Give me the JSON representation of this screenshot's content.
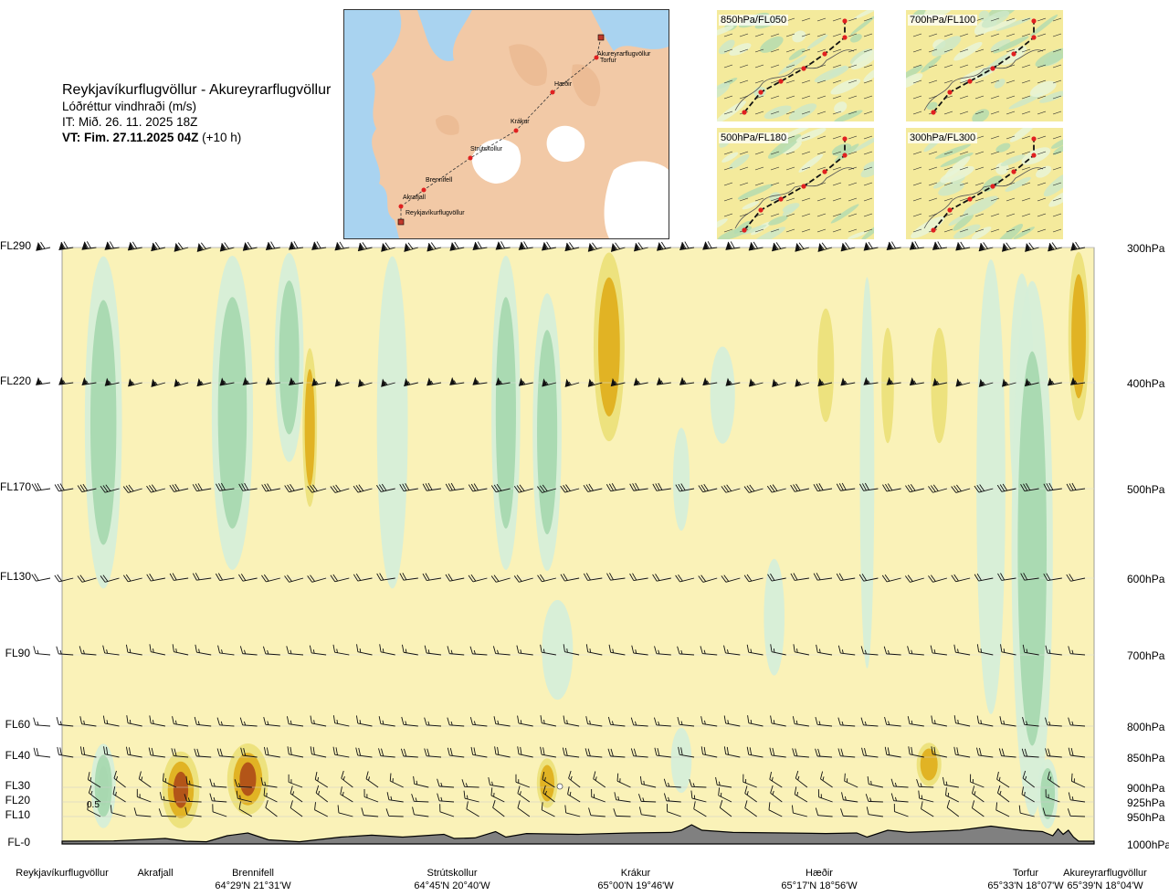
{
  "header": {
    "route": "Reykjavíkurflugvöllur - Akureyrarflugvöllur",
    "variable": "Lóðréttur vindhraði (m/s)",
    "issue_time": "IT: Mið. 26. 11. 2025 18Z",
    "valid_time_bold": "VT: Fim. 27.11.2025 04Z",
    "valid_time_lead": "(+10 h)"
  },
  "route_map": {
    "waypoints": [
      "Akureyrarflugvöllur",
      "Torfur",
      "Hæðir",
      "Krákur",
      "Strútskollur",
      "Brennifell",
      "Akrafjall",
      "Reykjavíkurflugvöllur"
    ]
  },
  "mini_maps": [
    {
      "label": "850hPa/FL050"
    },
    {
      "label": "700hPa/FL100"
    },
    {
      "label": "500hPa/FL180"
    },
    {
      "label": "300hPa/FL300"
    }
  ],
  "colors": {
    "land": "#f2c9a6",
    "water": "#a9d3f0",
    "glacier": "#ffffff",
    "terrain": "#808080",
    "neutral": "#faf2b8",
    "down_strong": "#a8d8b0",
    "down_weak": "#d6eed8",
    "up_weak": "#ece07a",
    "up_strong": "#e0b020",
    "up_max": "#b05018"
  },
  "chart_data": {
    "type": "heatmap",
    "title": "Lóðréttur vindhraði (m/s)",
    "y_levels": [
      {
        "fl": "FL290",
        "hpa": "300hPa"
      },
      {
        "fl": "FL220",
        "hpa": "400hPa"
      },
      {
        "fl": "FL170",
        "hpa": "500hPa"
      },
      {
        "fl": "FL130",
        "hpa": "600hPa"
      },
      {
        "fl": "FL90",
        "hpa": "700hPa"
      },
      {
        "fl": "FL60",
        "hpa": "800hPa"
      },
      {
        "fl": "FL40",
        "hpa": "850hPa"
      },
      {
        "fl": "FL30",
        "hpa": "900hPa"
      },
      {
        "fl": "FL20",
        "hpa": "925hPa"
      },
      {
        "fl": "FL10",
        "hpa": "950hPa"
      },
      {
        "fl": "FL-0",
        "hpa": "1000hPa"
      }
    ],
    "locations": [
      {
        "name": "Reykjavíkurflugvöllur",
        "coord": ""
      },
      {
        "name": "Akrafjall",
        "coord": ""
      },
      {
        "name": "Brennifell",
        "coord": "64°29'N 21°31'W"
      },
      {
        "name": "Strútskollur",
        "coord": "64°45'N 20°40'W"
      },
      {
        "name": "Krákur",
        "coord": "65°00'N 19°46'W"
      },
      {
        "name": "Hæðir",
        "coord": "65°17'N 18°56'W"
      },
      {
        "name": "Torfur",
        "coord": "65°33'N 18°07'W"
      },
      {
        "name": "Akureyrarflugvöllur",
        "coord": "65°39'N 18°04'W"
      }
    ],
    "annotation": "0.5",
    "columns": [
      {
        "x": 0.04,
        "half_width": 0.018,
        "fl_top": 290,
        "fl_bottom": 120,
        "value": -0.6
      },
      {
        "x": 0.04,
        "half_width": 0.012,
        "fl_top": 50,
        "fl_bottom": 5,
        "value": -1.2
      },
      {
        "x": 0.115,
        "half_width": 0.018,
        "fl_top": 45,
        "fl_bottom": 5,
        "value": 1.5
      },
      {
        "x": 0.165,
        "half_width": 0.02,
        "fl_top": 290,
        "fl_bottom": 130,
        "value": -0.6
      },
      {
        "x": 0.18,
        "half_width": 0.02,
        "fl_top": 50,
        "fl_bottom": 10,
        "value": 1.2
      },
      {
        "x": 0.22,
        "half_width": 0.014,
        "fl_top": 290,
        "fl_bottom": 180,
        "value": -0.9
      },
      {
        "x": 0.24,
        "half_width": 0.007,
        "fl_top": 240,
        "fl_bottom": 160,
        "value": 0.6
      },
      {
        "x": 0.32,
        "half_width": 0.015,
        "fl_top": 290,
        "fl_bottom": 120,
        "value": -0.5
      },
      {
        "x": 0.43,
        "half_width": 0.014,
        "fl_top": 290,
        "fl_bottom": 130,
        "value": -0.7
      },
      {
        "x": 0.47,
        "half_width": 0.014,
        "fl_top": 270,
        "fl_bottom": 130,
        "value": -1.0
      },
      {
        "x": 0.47,
        "half_width": 0.01,
        "fl_top": 40,
        "fl_bottom": 15,
        "value": 0.6
      },
      {
        "x": 0.48,
        "half_width": 0.015,
        "fl_top": 120,
        "fl_bottom": 70,
        "value": -0.4
      },
      {
        "x": 0.53,
        "half_width": 0.015,
        "fl_top": 290,
        "fl_bottom": 190,
        "value": 0.7
      },
      {
        "x": 0.6,
        "half_width": 0.01,
        "fl_top": 60,
        "fl_bottom": 25,
        "value": -0.5
      },
      {
        "x": 0.6,
        "half_width": 0.008,
        "fl_top": 200,
        "fl_bottom": 150,
        "value": -0.3
      },
      {
        "x": 0.64,
        "half_width": 0.012,
        "fl_top": 240,
        "fl_bottom": 190,
        "value": -0.4
      },
      {
        "x": 0.69,
        "half_width": 0.01,
        "fl_top": 140,
        "fl_bottom": 80,
        "value": -0.4
      },
      {
        "x": 0.74,
        "half_width": 0.008,
        "fl_top": 260,
        "fl_bottom": 200,
        "value": 0.5
      },
      {
        "x": 0.78,
        "half_width": 0.007,
        "fl_top": 280,
        "fl_bottom": 80,
        "value": -0.4
      },
      {
        "x": 0.8,
        "half_width": 0.006,
        "fl_top": 250,
        "fl_bottom": 190,
        "value": 0.5
      },
      {
        "x": 0.84,
        "half_width": 0.012,
        "fl_top": 50,
        "fl_bottom": 30,
        "value": 1.0
      },
      {
        "x": 0.85,
        "half_width": 0.008,
        "fl_top": 250,
        "fl_bottom": 190,
        "value": 0.5
      },
      {
        "x": 0.9,
        "half_width": 0.014,
        "fl_top": 290,
        "fl_bottom": 60,
        "value": -0.5
      },
      {
        "x": 0.93,
        "half_width": 0.012,
        "fl_top": 280,
        "fl_bottom": 150,
        "value": -0.4
      },
      {
        "x": 0.94,
        "half_width": 0.02,
        "fl_top": 280,
        "fl_bottom": 5,
        "value": -0.6
      },
      {
        "x": 0.955,
        "half_width": 0.01,
        "fl_top": 40,
        "fl_bottom": 5,
        "value": -1.0
      },
      {
        "x": 0.985,
        "half_width": 0.01,
        "fl_top": 290,
        "fl_bottom": 200,
        "value": 0.6
      }
    ],
    "terrain_fl": [
      [
        0.0,
        1.0
      ],
      [
        0.05,
        1.1
      ],
      [
        0.1,
        2.0
      ],
      [
        0.12,
        1.0
      ],
      [
        0.14,
        0.8
      ],
      [
        0.16,
        3.0
      ],
      [
        0.18,
        4.0
      ],
      [
        0.2,
        1.5
      ],
      [
        0.23,
        0.8
      ],
      [
        0.27,
        2.5
      ],
      [
        0.3,
        3.2
      ],
      [
        0.33,
        2.5
      ],
      [
        0.37,
        3.5
      ],
      [
        0.38,
        2.0
      ],
      [
        0.4,
        2.2
      ],
      [
        0.42,
        4.5
      ],
      [
        0.43,
        2.5
      ],
      [
        0.45,
        3.8
      ],
      [
        0.5,
        3.5
      ],
      [
        0.55,
        4.0
      ],
      [
        0.59,
        4.2
      ],
      [
        0.6,
        5.0
      ],
      [
        0.61,
        7.0
      ],
      [
        0.62,
        5.0
      ],
      [
        0.65,
        4.2
      ],
      [
        0.7,
        4.0
      ],
      [
        0.74,
        3.8
      ],
      [
        0.77,
        4.0
      ],
      [
        0.78,
        2.5
      ],
      [
        0.8,
        5.0
      ],
      [
        0.82,
        4.2
      ],
      [
        0.84,
        4.5
      ],
      [
        0.87,
        5.0
      ],
      [
        0.9,
        6.5
      ],
      [
        0.93,
        5.0
      ],
      [
        0.95,
        4.5
      ],
      [
        0.96,
        3.0
      ],
      [
        0.965,
        5.5
      ],
      [
        0.97,
        3.5
      ],
      [
        0.975,
        5.0
      ],
      [
        0.98,
        2.5
      ],
      [
        0.985,
        1.0
      ],
      [
        1.0,
        1.0
      ]
    ],
    "wind_barbs_per_level": [
      {
        "hpa": "300hPa",
        "count": 46,
        "speed_kt": 70
      },
      {
        "hpa": "400hPa",
        "count": 46,
        "speed_kt": 55
      },
      {
        "hpa": "500hPa",
        "count": 46,
        "speed_kt": 30
      },
      {
        "hpa": "600hPa",
        "count": 46,
        "speed_kt": 20
      },
      {
        "hpa": "700hPa",
        "count": 46,
        "speed_kt": 15
      },
      {
        "hpa": "800hPa",
        "count": 46,
        "speed_kt": 15
      },
      {
        "hpa": "850hPa",
        "count": 46,
        "speed_kt": 20
      },
      {
        "hpa": "900hPa",
        "count": 40,
        "speed_kt": 15
      },
      {
        "hpa": "925hPa",
        "count": 40,
        "speed_kt": 15
      },
      {
        "hpa": "950hPa",
        "count": 40,
        "speed_kt": 10
      }
    ]
  }
}
